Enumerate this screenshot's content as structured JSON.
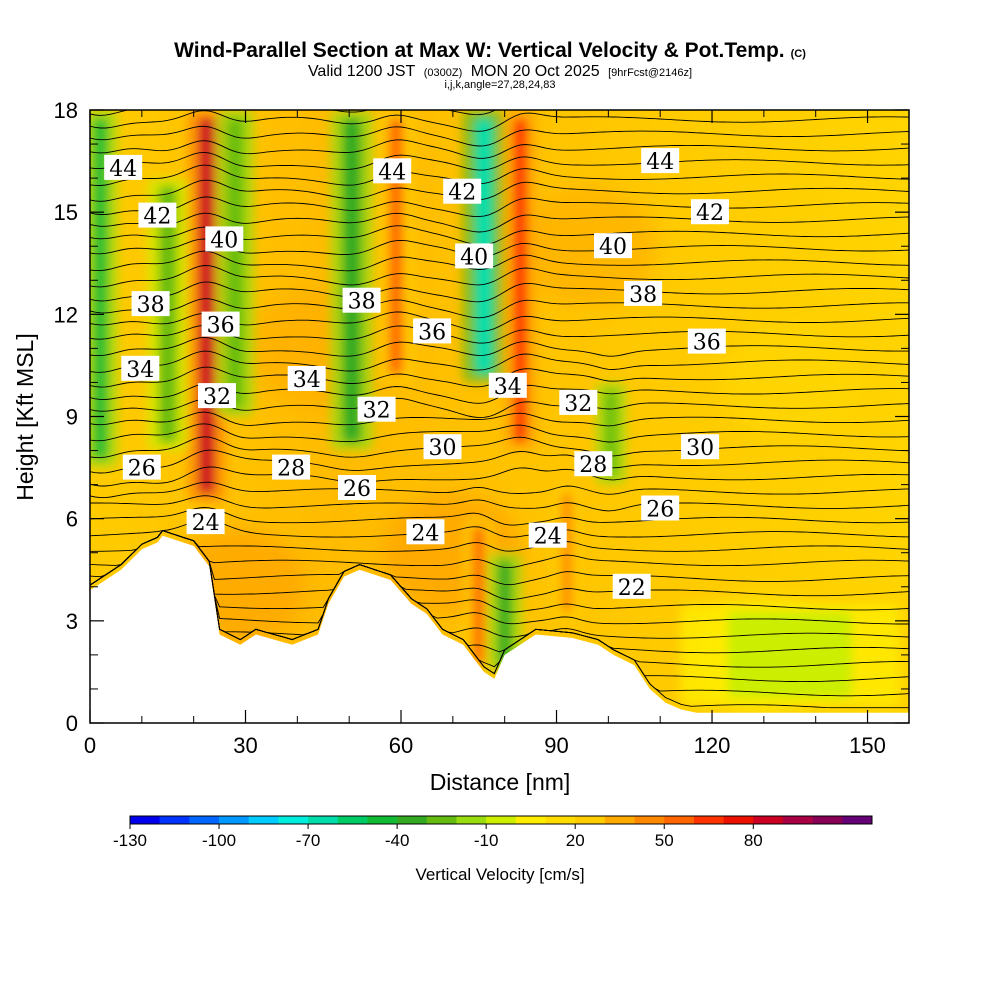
{
  "chart_data": {
    "type": "heatmap",
    "title": "Wind-Parallel Section at Max W: Vertical Velocity & Pot.Temp.",
    "title_mark": "(C)",
    "subtitle_prefix": "Valid 1200 JST",
    "subtitle_small1": "(0300Z)",
    "subtitle_mid": "MON 20 Oct 2025",
    "subtitle_small2": "[9hrFcst@2146z]",
    "subtitle2": "i,j,k,angle=27,28,24,83",
    "xlabel": "Distance [nm]",
    "ylabel": "Height [Kft MSL]",
    "xlim": [
      0,
      158
    ],
    "ylim": [
      0,
      18
    ],
    "x_ticks": [
      "0",
      "30",
      "60",
      "90",
      "120",
      "150"
    ],
    "y_ticks": [
      "0",
      "3",
      "6",
      "9",
      "12",
      "15",
      "18"
    ],
    "colorbar": {
      "label": "Vertical Velocity [cm/s]",
      "tick_labels": [
        "-130",
        "-100",
        "-70",
        "-40",
        "-10",
        "20",
        "50",
        "80"
      ],
      "colors": [
        "#0000ee",
        "#0033ff",
        "#0066ff",
        "#0099ff",
        "#00ccff",
        "#00eedd",
        "#00ddaa",
        "#00cc66",
        "#11bb33",
        "#33aa22",
        "#66bb11",
        "#99dd11",
        "#ccee00",
        "#ffee00",
        "#ffdd00",
        "#ffcc00",
        "#ffaa00",
        "#ff8800",
        "#ff6600",
        "#ff3300",
        "#ee1100",
        "#cc0022",
        "#aa0044",
        "#880055",
        "#660077"
      ]
    },
    "theta_contour_labels": [
      {
        "text": "44",
        "x": 6.4,
        "y": 16.3
      },
      {
        "text": "42",
        "x": 13,
        "y": 14.9
      },
      {
        "text": "40",
        "x": 25.9,
        "y": 14.2
      },
      {
        "text": "38",
        "x": 11.7,
        "y": 12.3
      },
      {
        "text": "36",
        "x": 25.2,
        "y": 11.7
      },
      {
        "text": "34",
        "x": 9.7,
        "y": 10.4
      },
      {
        "text": "32",
        "x": 24.5,
        "y": 9.6
      },
      {
        "text": "26",
        "x": 10,
        "y": 7.5
      },
      {
        "text": "24",
        "x": 22.3,
        "y": 5.9
      },
      {
        "text": "44",
        "x": 58.3,
        "y": 16.2
      },
      {
        "text": "42",
        "x": 71.8,
        "y": 15.6
      },
      {
        "text": "40",
        "x": 74.1,
        "y": 13.7
      },
      {
        "text": "38",
        "x": 52.4,
        "y": 12.4
      },
      {
        "text": "36",
        "x": 66.0,
        "y": 11.5
      },
      {
        "text": "34",
        "x": 41.8,
        "y": 10.1
      },
      {
        "text": "32",
        "x": 55.3,
        "y": 9.2
      },
      {
        "text": "30",
        "x": 68.0,
        "y": 8.1
      },
      {
        "text": "28",
        "x": 38.8,
        "y": 7.5
      },
      {
        "text": "26",
        "x": 51.5,
        "y": 6.9
      },
      {
        "text": "24",
        "x": 64.7,
        "y": 5.6
      },
      {
        "text": "34",
        "x": 80.6,
        "y": 9.9
      },
      {
        "text": "24",
        "x": 88.3,
        "y": 5.5
      },
      {
        "text": "22",
        "x": 104.5,
        "y": 4.0
      },
      {
        "text": "32",
        "x": 94.2,
        "y": 9.4
      },
      {
        "text": "28",
        "x": 97.1,
        "y": 7.6
      },
      {
        "text": "26",
        "x": 110.0,
        "y": 6.3
      },
      {
        "text": "30",
        "x": 117.7,
        "y": 8.1
      },
      {
        "text": "36",
        "x": 119.0,
        "y": 11.2
      },
      {
        "text": "38",
        "x": 106.7,
        "y": 12.6
      },
      {
        "text": "40",
        "x": 100.9,
        "y": 14.0
      },
      {
        "text": "42",
        "x": 119.6,
        "y": 15.0
      },
      {
        "text": "44",
        "x": 110.0,
        "y": 16.5
      }
    ],
    "terrain": [
      {
        "x": 0,
        "y": 3.9
      },
      {
        "x": 3,
        "y": 4.2
      },
      {
        "x": 6,
        "y": 4.5
      },
      {
        "x": 8,
        "y": 4.8
      },
      {
        "x": 10,
        "y": 5.1
      },
      {
        "x": 13,
        "y": 5.3
      },
      {
        "x": 14,
        "y": 5.5
      },
      {
        "x": 20,
        "y": 5.2
      },
      {
        "x": 23,
        "y": 4.6
      },
      {
        "x": 25,
        "y": 2.6
      },
      {
        "x": 29,
        "y": 2.3
      },
      {
        "x": 32,
        "y": 2.6
      },
      {
        "x": 39,
        "y": 2.3
      },
      {
        "x": 44,
        "y": 2.6
      },
      {
        "x": 46,
        "y": 3.5
      },
      {
        "x": 49,
        "y": 4.3
      },
      {
        "x": 52,
        "y": 4.5
      },
      {
        "x": 58,
        "y": 4.2
      },
      {
        "x": 62,
        "y": 3.5
      },
      {
        "x": 65,
        "y": 3.2
      },
      {
        "x": 68,
        "y": 2.6
      },
      {
        "x": 72,
        "y": 2.3
      },
      {
        "x": 76,
        "y": 1.5
      },
      {
        "x": 78,
        "y": 1.3
      },
      {
        "x": 80,
        "y": 2.0
      },
      {
        "x": 83,
        "y": 2.3
      },
      {
        "x": 86,
        "y": 2.6
      },
      {
        "x": 93,
        "y": 2.5
      },
      {
        "x": 98,
        "y": 2.3
      },
      {
        "x": 101,
        "y": 2.0
      },
      {
        "x": 105,
        "y": 1.7
      },
      {
        "x": 108,
        "y": 1.0
      },
      {
        "x": 111,
        "y": 0.6
      },
      {
        "x": 114,
        "y": 0.4
      },
      {
        "x": 117,
        "y": 0.3
      },
      {
        "x": 158,
        "y": 0.3
      }
    ],
    "w_features": [
      {
        "x": 2,
        "half_width": 2.2,
        "y_from": 7.5,
        "y_to": 18,
        "w": -50
      },
      {
        "x": 15,
        "half_width": 2.8,
        "y_from": 8,
        "y_to": 16,
        "w": -30
      },
      {
        "x": 22.5,
        "half_width": 2.5,
        "y_from": 6.5,
        "y_to": 18,
        "w": 80
      },
      {
        "x": 28,
        "half_width": 2.5,
        "y_from": 9,
        "y_to": 18,
        "w": -35
      },
      {
        "x": 50.5,
        "half_width": 3,
        "y_from": 8,
        "y_to": 18,
        "w": -40
      },
      {
        "x": 59,
        "half_width": 2.2,
        "y_from": 10,
        "y_to": 18,
        "w": 45
      },
      {
        "x": 76,
        "half_width": 3,
        "y_from": 10,
        "y_to": 18,
        "w": -70
      },
      {
        "x": 83,
        "half_width": 2.2,
        "y_from": 8,
        "y_to": 18,
        "w": 60
      },
      {
        "x": 75,
        "half_width": 1.8,
        "y_from": 1.5,
        "y_to": 6,
        "w": 45
      },
      {
        "x": 80,
        "half_width": 2.2,
        "y_from": 1.5,
        "y_to": 5,
        "w": -40
      },
      {
        "x": 92,
        "half_width": 1.6,
        "y_from": 3,
        "y_to": 7,
        "w": 35
      },
      {
        "x": 100.5,
        "half_width": 1.8,
        "y_from": 7,
        "y_to": 10,
        "w": -35
      },
      {
        "x": 135,
        "half_width": 20,
        "y_from": 0.5,
        "y_to": 3.5,
        "w": -10
      }
    ]
  }
}
